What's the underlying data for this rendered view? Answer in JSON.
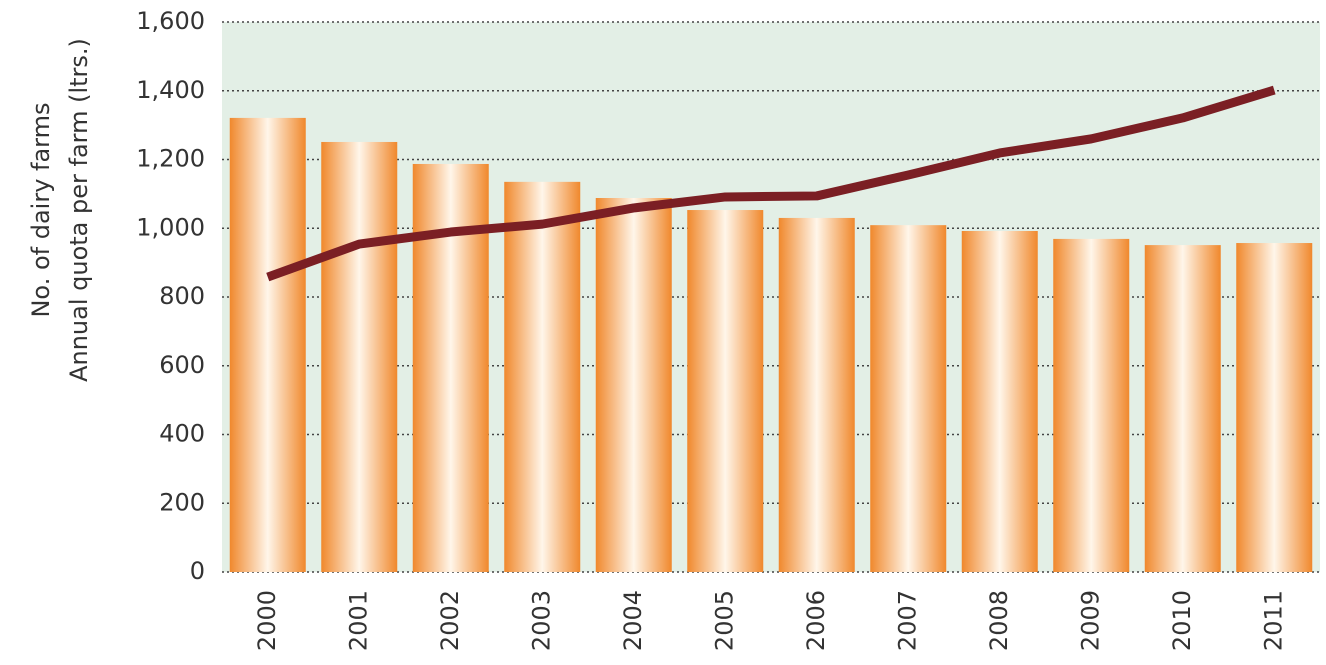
{
  "chart_data": {
    "type": "bar",
    "ylabel": [
      "No. of dairy farms",
      "Annual quota per farm (ltrs.)"
    ],
    "categories": [
      "2000",
      "2001",
      "2002",
      "2003",
      "2004",
      "2005",
      "2006",
      "2007",
      "2008",
      "2009",
      "2010",
      "2011"
    ],
    "series": [
      {
        "type": "bar",
        "color": "#f0882c",
        "values": [
          1321,
          1251,
          1187,
          1135,
          1088,
          1053,
          1030,
          1009,
          992,
          969,
          951,
          957
        ]
      },
      {
        "type": "line",
        "color": "#7b1f24",
        "values": [
          858,
          954,
          989,
          1012,
          1059,
          1091,
          1094,
          1155,
          1219,
          1260,
          1321,
          1402
        ]
      }
    ],
    "ylim": [
      0,
      1600
    ],
    "yticks": [
      0,
      {
        "value": 200,
        "label": "200"
      },
      400,
      600,
      800,
      {
        "value": 1000,
        "label": "1,000"
      },
      {
        "value": 1200,
        "label": "1,200"
      },
      {
        "value": 1400,
        "label": "1,400"
      },
      {
        "value": 1600,
        "label": "1,600"
      }
    ],
    "grid": true,
    "background": "#e3efe6"
  }
}
